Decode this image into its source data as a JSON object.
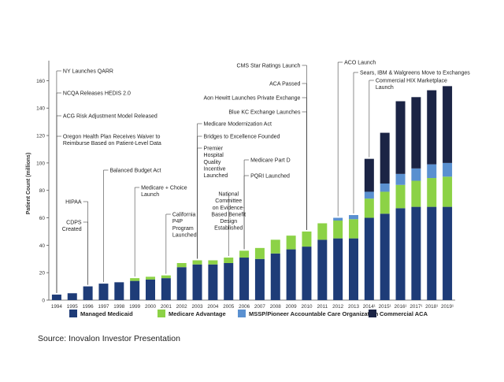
{
  "chart_data": {
    "type": "bar",
    "stacked": true,
    "ylabel": "Patient Count (millions)",
    "xlabel": "",
    "ylim": [
      0,
      170
    ],
    "yticks": [
      0,
      20,
      40,
      60,
      80,
      100,
      120,
      140,
      160
    ],
    "grid": false,
    "legend_position": "bottom",
    "categories": [
      "1994",
      "1995",
      "1996",
      "1997",
      "1998",
      "1999",
      "2000",
      "2001",
      "2002",
      "2003",
      "2004",
      "2005",
      "2006",
      "2007",
      "2008",
      "2009",
      "2010",
      "2011",
      "2012",
      "2013",
      "2014¹",
      "2015¹",
      "2016¹",
      "2017¹",
      "2018¹",
      "2019¹"
    ],
    "series": [
      {
        "name": "Managed Medicaid",
        "color": "#1e3c78",
        "values": [
          4,
          5,
          10,
          12,
          13,
          14,
          15,
          16,
          24,
          26,
          26,
          27,
          31,
          30,
          34,
          37,
          39,
          44,
          45,
          45,
          60,
          63,
          67,
          68,
          68,
          68
        ]
      },
      {
        "name": "Medicare Advantage",
        "color": "#8cd246",
        "values": [
          0,
          0,
          0,
          0,
          0,
          2,
          2,
          2,
          3,
          3,
          3,
          4,
          5,
          8,
          10,
          10,
          11,
          12,
          13,
          14,
          14,
          16,
          17,
          19,
          21,
          22
        ]
      },
      {
        "name": "MSSP/Pioneer Accountable Care Organization",
        "color": "#5a90d0",
        "values": [
          0,
          0,
          0,
          0,
          0,
          0,
          0,
          0,
          0,
          0,
          0,
          0,
          0,
          0,
          0,
          0,
          0,
          0,
          2,
          3,
          5,
          6,
          8,
          9,
          10,
          10
        ]
      },
      {
        "name": "Commercial ACA",
        "color": "#1b2445",
        "values": [
          0,
          0,
          0,
          0,
          0,
          0,
          0,
          0,
          0,
          0,
          0,
          0,
          0,
          0,
          0,
          0,
          0,
          0,
          0,
          0,
          24,
          37,
          53,
          52,
          54,
          56
        ]
      }
    ],
    "annotations": [
      {
        "text": "NY Launches QARR",
        "year": "1994"
      },
      {
        "text": "NCQA Releases HEDIS 2.0",
        "year": "1994"
      },
      {
        "text": "ACG Risk Adjustment Model Released",
        "year": "1994"
      },
      {
        "text": "Oregon Health Plan Receives Waiver to Reimburse Based on Patient-Level Data",
        "year": "1994"
      },
      {
        "text": "HIPAA",
        "year": "1996"
      },
      {
        "text": "CDPS Created",
        "year": "1996"
      },
      {
        "text": "Balanced Budget Act",
        "year": "1997"
      },
      {
        "text": "Medicare + Choice Launch",
        "year": "1999"
      },
      {
        "text": "California P4P Program Launched",
        "year": "2001"
      },
      {
        "text": "Medicare Modernization Act",
        "year": "2003"
      },
      {
        "text": "Bridges to Excellence Founded",
        "year": "2003"
      },
      {
        "text": "Premier Hospital Quality Incentive Launched",
        "year": "2003"
      },
      {
        "text": "National Committee on Evidence-Based Benefit Design Established",
        "year": "2005"
      },
      {
        "text": "Medicare Part D",
        "year": "2006"
      },
      {
        "text": "PQRI Launched",
        "year": "2006"
      },
      {
        "text": "CMS Star Ratings Launch",
        "year": "2010"
      },
      {
        "text": "ACA Passed",
        "year": "2010"
      },
      {
        "text": "Aon Hewitt Launches Private Exchange",
        "year": "2010"
      },
      {
        "text": "Blue KC Exchange Launches",
        "year": "2010"
      },
      {
        "text": "ACO Launch",
        "year": "2012"
      },
      {
        "text": "Sears, IBM & Walgreens Move to Exchanges",
        "year": "2013"
      },
      {
        "text": "Commercial HIX Marketplace Launch",
        "year": "2014"
      }
    ]
  },
  "source": "Source: Inovalon Investor Presentation"
}
